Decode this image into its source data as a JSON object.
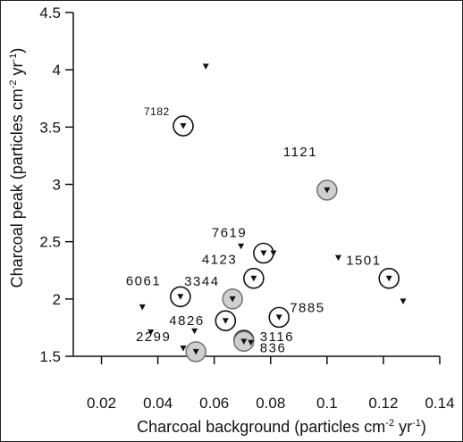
{
  "chart_data": {
    "type": "scatter",
    "xlabel": {
      "main": "Charcoal background (particles cm",
      "exp1": "-2",
      "mid": " yr",
      "exp2": "-1",
      "end": ")"
    },
    "ylabel": {
      "main": "Charcoal peak (particles cm",
      "exp1": "-2",
      "mid": " yr",
      "exp2": "-1",
      "end": ")"
    },
    "xlim": [
      0.01,
      0.14
    ],
    "ylim": [
      1.5,
      4.5
    ],
    "xticks": [
      0.02,
      0.04,
      0.06,
      0.08,
      0.1,
      0.12,
      0.14
    ],
    "xtick_labels": [
      "0.02",
      "0.04",
      "0.06",
      "0.08",
      "0.1",
      "0.12",
      "0.14"
    ],
    "yticks": [
      1.5,
      2,
      2.5,
      3,
      3.5,
      4,
      4.5
    ],
    "ytick_labels": [
      "1.5",
      "2",
      "2.5",
      "3",
      "3.5",
      "4",
      "4.5"
    ],
    "grid": false,
    "points": [
      {
        "x": 0.057,
        "y": 4.03,
        "marker": "plain",
        "label": ""
      },
      {
        "x": 0.049,
        "y": 3.51,
        "marker": "circled",
        "label": "7182"
      },
      {
        "x": 0.1,
        "y": 2.95,
        "marker": "circled-filled",
        "label": "1121"
      },
      {
        "x": 0.0775,
        "y": 2.4,
        "marker": "circled",
        "label": "7619"
      },
      {
        "x": 0.081,
        "y": 2.4,
        "marker": "plain",
        "label": ""
      },
      {
        "x": 0.0695,
        "y": 2.46,
        "marker": "plain",
        "label": ""
      },
      {
        "x": 0.104,
        "y": 2.36,
        "marker": "plain",
        "label": ""
      },
      {
        "x": 0.122,
        "y": 2.18,
        "marker": "circled",
        "label": "1501"
      },
      {
        "x": 0.074,
        "y": 2.18,
        "marker": "circled",
        "label": "4123"
      },
      {
        "x": 0.0665,
        "y": 2.0,
        "marker": "circled-filled",
        "label": "3344"
      },
      {
        "x": 0.048,
        "y": 2.02,
        "marker": "circled",
        "label": "6061"
      },
      {
        "x": 0.127,
        "y": 1.98,
        "marker": "plain",
        "label": ""
      },
      {
        "x": 0.0345,
        "y": 1.93,
        "marker": "plain",
        "label": ""
      },
      {
        "x": 0.0635,
        "y": 1.85,
        "marker": "plain",
        "label": ""
      },
      {
        "x": 0.064,
        "y": 1.81,
        "marker": "circled",
        "label": "4826"
      },
      {
        "x": 0.083,
        "y": 1.84,
        "marker": "circled",
        "label": "7885"
      },
      {
        "x": 0.0375,
        "y": 1.71,
        "marker": "plain",
        "label": ""
      },
      {
        "x": 0.053,
        "y": 1.72,
        "marker": "plain",
        "label": ""
      },
      {
        "x": 0.0705,
        "y": 1.64,
        "marker": "circled",
        "label": "3116"
      },
      {
        "x": 0.0705,
        "y": 1.63,
        "marker": "circled-filled",
        "label": "836"
      },
      {
        "x": 0.073,
        "y": 1.62,
        "marker": "plain",
        "label": ""
      },
      {
        "x": 0.049,
        "y": 1.57,
        "marker": "plain",
        "label": "2299"
      },
      {
        "x": 0.0535,
        "y": 1.54,
        "marker": "circled-filled",
        "label": ""
      }
    ]
  }
}
